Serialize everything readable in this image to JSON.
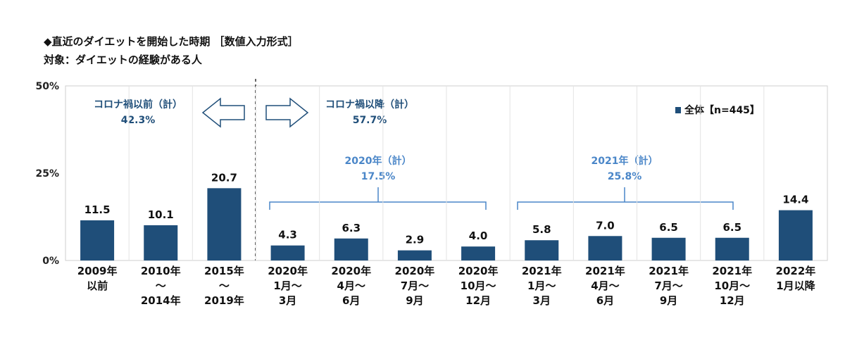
{
  "title": "◆直近のダイエットを開始した時期 ［数値入力形式］",
  "subtitle": "対象：ダイエットの経験がある人",
  "chart_data": {
    "type": "bar",
    "categories": [
      [
        "2009年",
        "以前"
      ],
      [
        "2010年",
        "～",
        "2014年"
      ],
      [
        "2015年",
        "～",
        "2019年"
      ],
      [
        "2020年",
        "1月～",
        "3月"
      ],
      [
        "2020年",
        "4月～",
        "6月"
      ],
      [
        "2020年",
        "7月～",
        "9月"
      ],
      [
        "2020年",
        "10月～",
        "12月"
      ],
      [
        "2021年",
        "1月～",
        "3月"
      ],
      [
        "2021年",
        "4月～",
        "6月"
      ],
      [
        "2021年",
        "7月～",
        "9月"
      ],
      [
        "2021年",
        "10月～",
        "12月"
      ],
      [
        "2022年",
        "1月以降"
      ]
    ],
    "series": [
      {
        "name": "全体【n=445】",
        "values": [
          11.5,
          10.1,
          20.7,
          4.3,
          6.3,
          2.9,
          4.0,
          5.8,
          7.0,
          6.5,
          6.5,
          14.4
        ]
      }
    ],
    "value_labels": [
      "11.5",
      "10.1",
      "20.7",
      "4.3",
      "6.3",
      "2.9",
      "4.0",
      "5.8",
      "7.0",
      "6.5",
      "6.5",
      "14.4"
    ],
    "yticks": [
      "0%",
      "25%",
      "50%"
    ],
    "ylim": [
      0,
      50
    ],
    "grid": true,
    "legend_position": "top-right",
    "bar_color": "#1f4e79",
    "annotations": {
      "before": {
        "label": "コロナ禍以前（計）",
        "value": "42.3%"
      },
      "after": {
        "label": "コロナ禍以降（計）",
        "value": "57.7%"
      },
      "y2020": {
        "label": "2020年（計）",
        "value": "17.5%"
      },
      "y2021": {
        "label": "2021年（計）",
        "value": "25.8%"
      }
    }
  }
}
